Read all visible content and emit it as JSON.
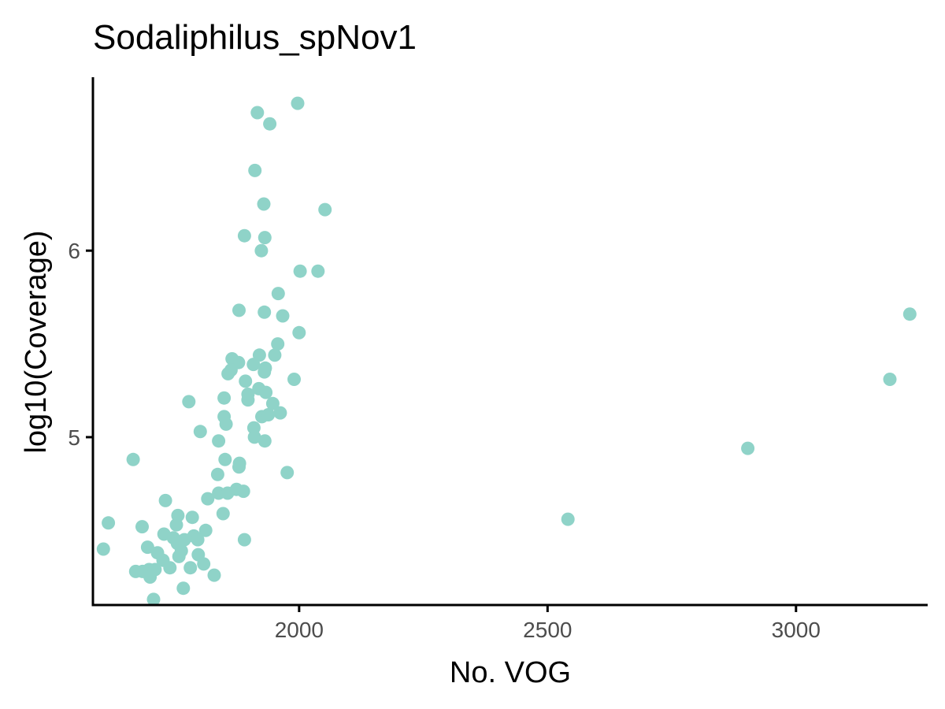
{
  "chart_data": {
    "type": "scatter",
    "title": "Sodaliphilus_spNov1",
    "xlabel": "No. VOG",
    "ylabel": "log10(Coverage)",
    "xlim": [
      1585,
      3265
    ],
    "ylim": [
      4.1,
      6.93
    ],
    "xticks": [
      2000,
      2500,
      3000
    ],
    "yticks": [
      5,
      6
    ],
    "grid": false,
    "legend": "none",
    "point_color": "#8fd3c8",
    "points": [
      {
        "x": 1997,
        "y": 6.79
      },
      {
        "x": 1916,
        "y": 6.74
      },
      {
        "x": 1941,
        "y": 6.68
      },
      {
        "x": 1911,
        "y": 6.43
      },
      {
        "x": 1929,
        "y": 6.25
      },
      {
        "x": 2052,
        "y": 6.22
      },
      {
        "x": 1890,
        "y": 6.08
      },
      {
        "x": 1931,
        "y": 6.07
      },
      {
        "x": 1924,
        "y": 6.0
      },
      {
        "x": 2002,
        "y": 5.89
      },
      {
        "x": 2038,
        "y": 5.89
      },
      {
        "x": 1958,
        "y": 5.77
      },
      {
        "x": 1879,
        "y": 5.68
      },
      {
        "x": 1930,
        "y": 5.67
      },
      {
        "x": 1967,
        "y": 5.65
      },
      {
        "x": 2000,
        "y": 5.56
      },
      {
        "x": 1957,
        "y": 5.5
      },
      {
        "x": 1920,
        "y": 5.44
      },
      {
        "x": 1951,
        "y": 5.44
      },
      {
        "x": 1865,
        "y": 5.42
      },
      {
        "x": 1878,
        "y": 5.4
      },
      {
        "x": 1908,
        "y": 5.39
      },
      {
        "x": 1932,
        "y": 5.37
      },
      {
        "x": 1863,
        "y": 5.36
      },
      {
        "x": 1930,
        "y": 5.35
      },
      {
        "x": 1857,
        "y": 5.34
      },
      {
        "x": 1990,
        "y": 5.31
      },
      {
        "x": 1892,
        "y": 5.3
      },
      {
        "x": 1919,
        "y": 5.26
      },
      {
        "x": 1933,
        "y": 5.24
      },
      {
        "x": 1897,
        "y": 5.23
      },
      {
        "x": 1849,
        "y": 5.21
      },
      {
        "x": 1897,
        "y": 5.2
      },
      {
        "x": 1778,
        "y": 5.19
      },
      {
        "x": 1947,
        "y": 5.18
      },
      {
        "x": 1962,
        "y": 5.13
      },
      {
        "x": 1849,
        "y": 5.11
      },
      {
        "x": 1925,
        "y": 5.11
      },
      {
        "x": 1938,
        "y": 5.12
      },
      {
        "x": 1853,
        "y": 5.07
      },
      {
        "x": 1909,
        "y": 5.05
      },
      {
        "x": 1801,
        "y": 5.03
      },
      {
        "x": 1910,
        "y": 5.0
      },
      {
        "x": 1838,
        "y": 4.98
      },
      {
        "x": 1931,
        "y": 4.98
      },
      {
        "x": 1666,
        "y": 4.88
      },
      {
        "x": 1851,
        "y": 4.88
      },
      {
        "x": 1880,
        "y": 4.86
      },
      {
        "x": 1879,
        "y": 4.84
      },
      {
        "x": 2903,
        "y": 4.94
      },
      {
        "x": 1976,
        "y": 4.81
      },
      {
        "x": 1836,
        "y": 4.8
      },
      {
        "x": 1874,
        "y": 4.72
      },
      {
        "x": 1888,
        "y": 4.71
      },
      {
        "x": 1838,
        "y": 4.7
      },
      {
        "x": 1856,
        "y": 4.7
      },
      {
        "x": 1816,
        "y": 4.67
      },
      {
        "x": 1731,
        "y": 4.66
      },
      {
        "x": 1847,
        "y": 4.59
      },
      {
        "x": 1756,
        "y": 4.58
      },
      {
        "x": 1785,
        "y": 4.57
      },
      {
        "x": 2541,
        "y": 4.56
      },
      {
        "x": 1616,
        "y": 4.54
      },
      {
        "x": 1753,
        "y": 4.53
      },
      {
        "x": 1684,
        "y": 4.52
      },
      {
        "x": 1812,
        "y": 4.5
      },
      {
        "x": 1728,
        "y": 4.48
      },
      {
        "x": 1788,
        "y": 4.47
      },
      {
        "x": 1747,
        "y": 4.46
      },
      {
        "x": 1769,
        "y": 4.45
      },
      {
        "x": 1796,
        "y": 4.45
      },
      {
        "x": 1890,
        "y": 4.45
      },
      {
        "x": 1755,
        "y": 4.43
      },
      {
        "x": 1695,
        "y": 4.41
      },
      {
        "x": 1606,
        "y": 4.4
      },
      {
        "x": 1763,
        "y": 4.39
      },
      {
        "x": 1715,
        "y": 4.38
      },
      {
        "x": 1797,
        "y": 4.37
      },
      {
        "x": 1758,
        "y": 4.36
      },
      {
        "x": 1726,
        "y": 4.34
      },
      {
        "x": 1808,
        "y": 4.32
      },
      {
        "x": 1740,
        "y": 4.3
      },
      {
        "x": 1781,
        "y": 4.3
      },
      {
        "x": 1698,
        "y": 4.29
      },
      {
        "x": 1710,
        "y": 4.29
      },
      {
        "x": 1671,
        "y": 4.28
      },
      {
        "x": 1685,
        "y": 4.28
      },
      {
        "x": 1829,
        "y": 4.26
      },
      {
        "x": 1700,
        "y": 4.25
      },
      {
        "x": 1767,
        "y": 4.19
      },
      {
        "x": 1707,
        "y": 4.13
      },
      {
        "x": 3229,
        "y": 5.66
      },
      {
        "x": 3189,
        "y": 5.31
      }
    ]
  }
}
